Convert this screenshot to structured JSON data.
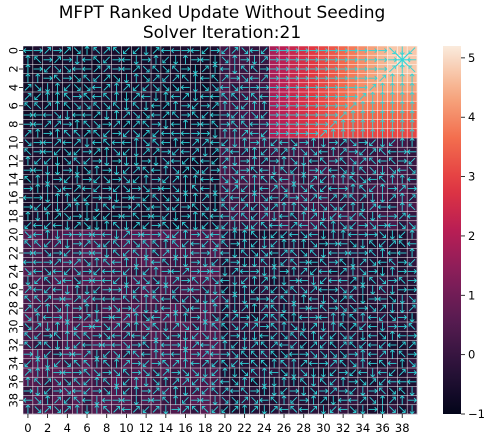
{
  "chart_data": {
    "type": "heatmap",
    "title_line1": "MFPT Ranked Update Without Seeding",
    "title_line2": "Solver Iteration:21",
    "rows": 40,
    "cols": 40,
    "x_tick_labels": [
      "0",
      "2",
      "4",
      "6",
      "8",
      "10",
      "12",
      "14",
      "16",
      "18",
      "20",
      "22",
      "24",
      "26",
      "28",
      "30",
      "32",
      "34",
      "36",
      "38"
    ],
    "y_tick_labels": [
      "0",
      "2",
      "4",
      "6",
      "8",
      "10",
      "12",
      "14",
      "16",
      "18",
      "20",
      "22",
      "24",
      "26",
      "28",
      "30",
      "32",
      "34",
      "36",
      "38"
    ],
    "colorbar": {
      "min": -1,
      "max": 5.2,
      "ticks": [
        -1,
        0,
        1,
        2,
        3,
        4,
        5
      ]
    },
    "colormap": "rocket",
    "grid_line_color": "#ffffff",
    "arrow_color": "#2fd6d9",
    "value_regions": [
      {
        "rows": [
          0,
          9
        ],
        "cols": [
          25,
          39
        ],
        "shape": "radial",
        "peak": 5.0,
        "peak_row": 1,
        "peak_col": 38,
        "falloff_per_cell": 0.24,
        "floor": 0.35
      },
      {
        "rows": [
          0,
          19
        ],
        "cols": [
          0,
          19
        ],
        "base": -0.6,
        "noise": 0.15
      },
      {
        "rows": [
          0,
          19
        ],
        "cols": [
          20,
          39
        ],
        "base": 0.1,
        "noise": 0.25
      },
      {
        "rows": [
          20,
          39
        ],
        "cols": [
          0,
          19
        ],
        "base": 0.3,
        "noise": 0.35
      },
      {
        "rows": [
          20,
          39
        ],
        "cols": [
          20,
          39
        ],
        "base": -0.3,
        "noise": 0.25
      }
    ],
    "goal_cell": {
      "row": 1,
      "col": 38
    }
  }
}
